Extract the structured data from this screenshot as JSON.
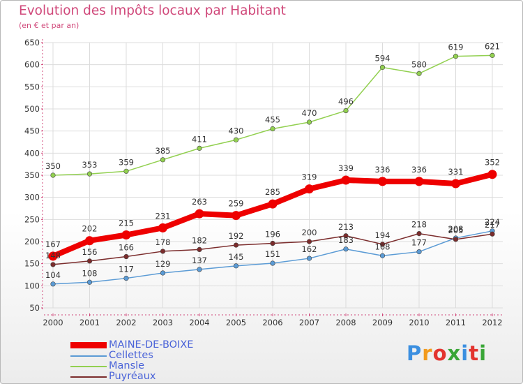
{
  "title": "Evolution des Impôts locaux par Habitant",
  "subtitle": "(en € et par an)",
  "logo": {
    "text": "Proxiti",
    "colors": [
      "#3b8fe0",
      "#f29a1c",
      "#e3342f",
      "#3aa637",
      "#3b8fe0",
      "#e3342f",
      "#3aa637"
    ]
  },
  "chart_data": {
    "type": "line",
    "title": "Evolution des Impôts locaux par Habitant",
    "subtitle": "(en € et par an)",
    "x": [
      "2000",
      "2001",
      "2002",
      "2003",
      "2004",
      "2005",
      "2006",
      "2007",
      "2008",
      "2009",
      "2010",
      "2011",
      "2012"
    ],
    "ylim": [
      50,
      650
    ],
    "yticks": [
      50,
      100,
      150,
      200,
      250,
      300,
      350,
      400,
      450,
      500,
      550,
      600,
      650
    ],
    "grid": true,
    "legend_position": "bottom-left",
    "series": [
      {
        "name": "MAINE-DE-BOIXE",
        "color": "#ee0000",
        "emphasis": true,
        "values": [
          167,
          202,
          215,
          231,
          263,
          259,
          285,
          319,
          339,
          336,
          336,
          331,
          352
        ]
      },
      {
        "name": "Cellettes",
        "color": "#5b9bd5",
        "emphasis": false,
        "values": [
          104,
          108,
          117,
          129,
          137,
          145,
          151,
          162,
          183,
          168,
          177,
          208,
          224
        ]
      },
      {
        "name": "Mansle",
        "color": "#92d050",
        "emphasis": false,
        "values": [
          350,
          353,
          359,
          385,
          411,
          430,
          455,
          470,
          496,
          594,
          580,
          619,
          621
        ]
      },
      {
        "name": "Puyréaux",
        "color": "#7b2c2c",
        "emphasis": false,
        "values": [
          148,
          156,
          166,
          178,
          182,
          192,
          196,
          200,
          213,
          194,
          218,
          205,
          217
        ]
      }
    ],
    "data_labels": [
      {
        "series": "MAINE-DE-BOIXE",
        "text": [
          "167",
          "202",
          "215",
          "231",
          "263",
          "259",
          "285",
          "319",
          "339",
          "336",
          "336",
          "331",
          "352"
        ]
      },
      {
        "series": "Cellettes",
        "text": [
          "104",
          "108",
          "117",
          "129",
          "137",
          "145",
          "151",
          "162",
          "183",
          "168",
          "177",
          "208",
          "224"
        ]
      },
      {
        "series": "Mansle",
        "text": [
          "350",
          "353",
          "359",
          "385",
          "411",
          "430",
          "455",
          "470",
          "496",
          "594",
          "580",
          "619",
          "621"
        ]
      },
      {
        "series": "Puyréaux",
        "text": [
          "148",
          "156",
          "166",
          "178",
          "182",
          "192",
          "196",
          "200",
          "213",
          "194",
          "218",
          "205",
          "217"
        ]
      }
    ]
  }
}
